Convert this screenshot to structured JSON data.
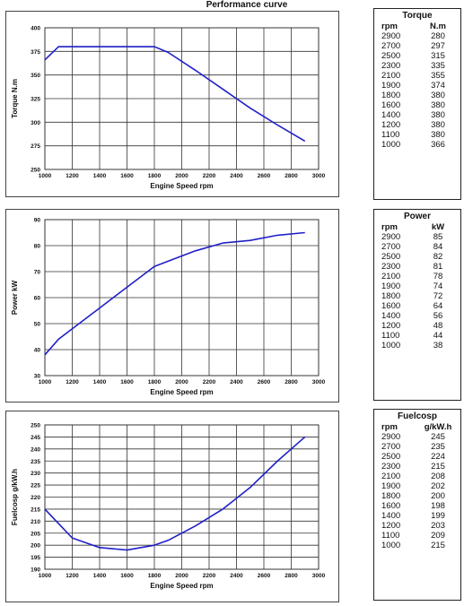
{
  "page": {
    "title": "Performance curve"
  },
  "colors": {
    "curve": "#1f1fc8",
    "grid": "#333333",
    "frame": "#444444",
    "text": "#111111"
  },
  "chart_data": [
    {
      "type": "line",
      "xlabel": "Engine Speed rpm",
      "ylabel": "Torque N.m",
      "xlim": [
        1000,
        3000
      ],
      "ylim": [
        250,
        400
      ],
      "xticks": [
        1000,
        1200,
        1400,
        1600,
        1800,
        2000,
        2200,
        2400,
        2600,
        2800,
        3000
      ],
      "yticks": [
        250,
        275,
        300,
        325,
        350,
        375,
        400
      ],
      "grid": true,
      "series": [
        {
          "x": [
            1000,
            1100,
            1200,
            1400,
            1600,
            1800,
            1900,
            2100,
            2300,
            2500,
            2700,
            2900
          ],
          "y": [
            366,
            380,
            380,
            380,
            380,
            380,
            374,
            355,
            335,
            315,
            297,
            280
          ]
        }
      ]
    },
    {
      "type": "line",
      "xlabel": "Engine Speed rpm",
      "ylabel": "Power kW",
      "xlim": [
        1000,
        3000
      ],
      "ylim": [
        30,
        90
      ],
      "xticks": [
        1000,
        1200,
        1400,
        1600,
        1800,
        2000,
        2200,
        2400,
        2600,
        2800,
        3000
      ],
      "yticks": [
        30,
        40,
        50,
        60,
        70,
        80,
        90
      ],
      "grid": true,
      "series": [
        {
          "x": [
            1000,
            1100,
            1200,
            1400,
            1600,
            1800,
            1900,
            2100,
            2300,
            2500,
            2700,
            2900
          ],
          "y": [
            38,
            44,
            48,
            56,
            64,
            72,
            74,
            78,
            81,
            82,
            84,
            85
          ]
        }
      ]
    },
    {
      "type": "line",
      "xlabel": "Engine Speed rpm",
      "ylabel": "Fuelcosp g/kW.h",
      "xlim": [
        1000,
        3000
      ],
      "ylim": [
        190,
        250
      ],
      "xticks": [
        1000,
        1200,
        1400,
        1600,
        1800,
        2000,
        2200,
        2400,
        2600,
        2800,
        3000
      ],
      "yticks": [
        190,
        195,
        200,
        205,
        210,
        215,
        220,
        225,
        230,
        235,
        240,
        245,
        250
      ],
      "grid": true,
      "series": [
        {
          "x": [
            1000,
            1100,
            1200,
            1400,
            1600,
            1800,
            1900,
            2100,
            2300,
            2500,
            2700,
            2900
          ],
          "y": [
            215,
            209,
            203,
            199,
            198,
            200,
            202,
            208,
            215,
            224,
            235,
            245
          ]
        }
      ]
    }
  ],
  "tables": [
    {
      "title": "Torque",
      "col1": "rpm",
      "col2": "N.m",
      "rows": [
        [
          "2900",
          "280"
        ],
        [
          "2700",
          "297"
        ],
        [
          "2500",
          "315"
        ],
        [
          "2300",
          "335"
        ],
        [
          "2100",
          "355"
        ],
        [
          "1900",
          "374"
        ],
        [
          "1800",
          "380"
        ],
        [
          "1600",
          "380"
        ],
        [
          "1400",
          "380"
        ],
        [
          "1200",
          "380"
        ],
        [
          "1100",
          "380"
        ],
        [
          "1000",
          "366"
        ]
      ]
    },
    {
      "title": "Power",
      "col1": "rpm",
      "col2": "kW",
      "rows": [
        [
          "2900",
          "85"
        ],
        [
          "2700",
          "84"
        ],
        [
          "2500",
          "82"
        ],
        [
          "2300",
          "81"
        ],
        [
          "2100",
          "78"
        ],
        [
          "1900",
          "74"
        ],
        [
          "1800",
          "72"
        ],
        [
          "1600",
          "64"
        ],
        [
          "1400",
          "56"
        ],
        [
          "1200",
          "48"
        ],
        [
          "1100",
          "44"
        ],
        [
          "1000",
          "38"
        ]
      ]
    },
    {
      "title": "Fuelcosp",
      "col1": "rpm",
      "col2": "g/kW.h",
      "rows": [
        [
          "2900",
          "245"
        ],
        [
          "2700",
          "235"
        ],
        [
          "2500",
          "224"
        ],
        [
          "2300",
          "215"
        ],
        [
          "2100",
          "208"
        ],
        [
          "1900",
          "202"
        ],
        [
          "1800",
          "200"
        ],
        [
          "1600",
          "198"
        ],
        [
          "1400",
          "199"
        ],
        [
          "1200",
          "203"
        ],
        [
          "1100",
          "209"
        ],
        [
          "1000",
          "215"
        ]
      ]
    }
  ]
}
